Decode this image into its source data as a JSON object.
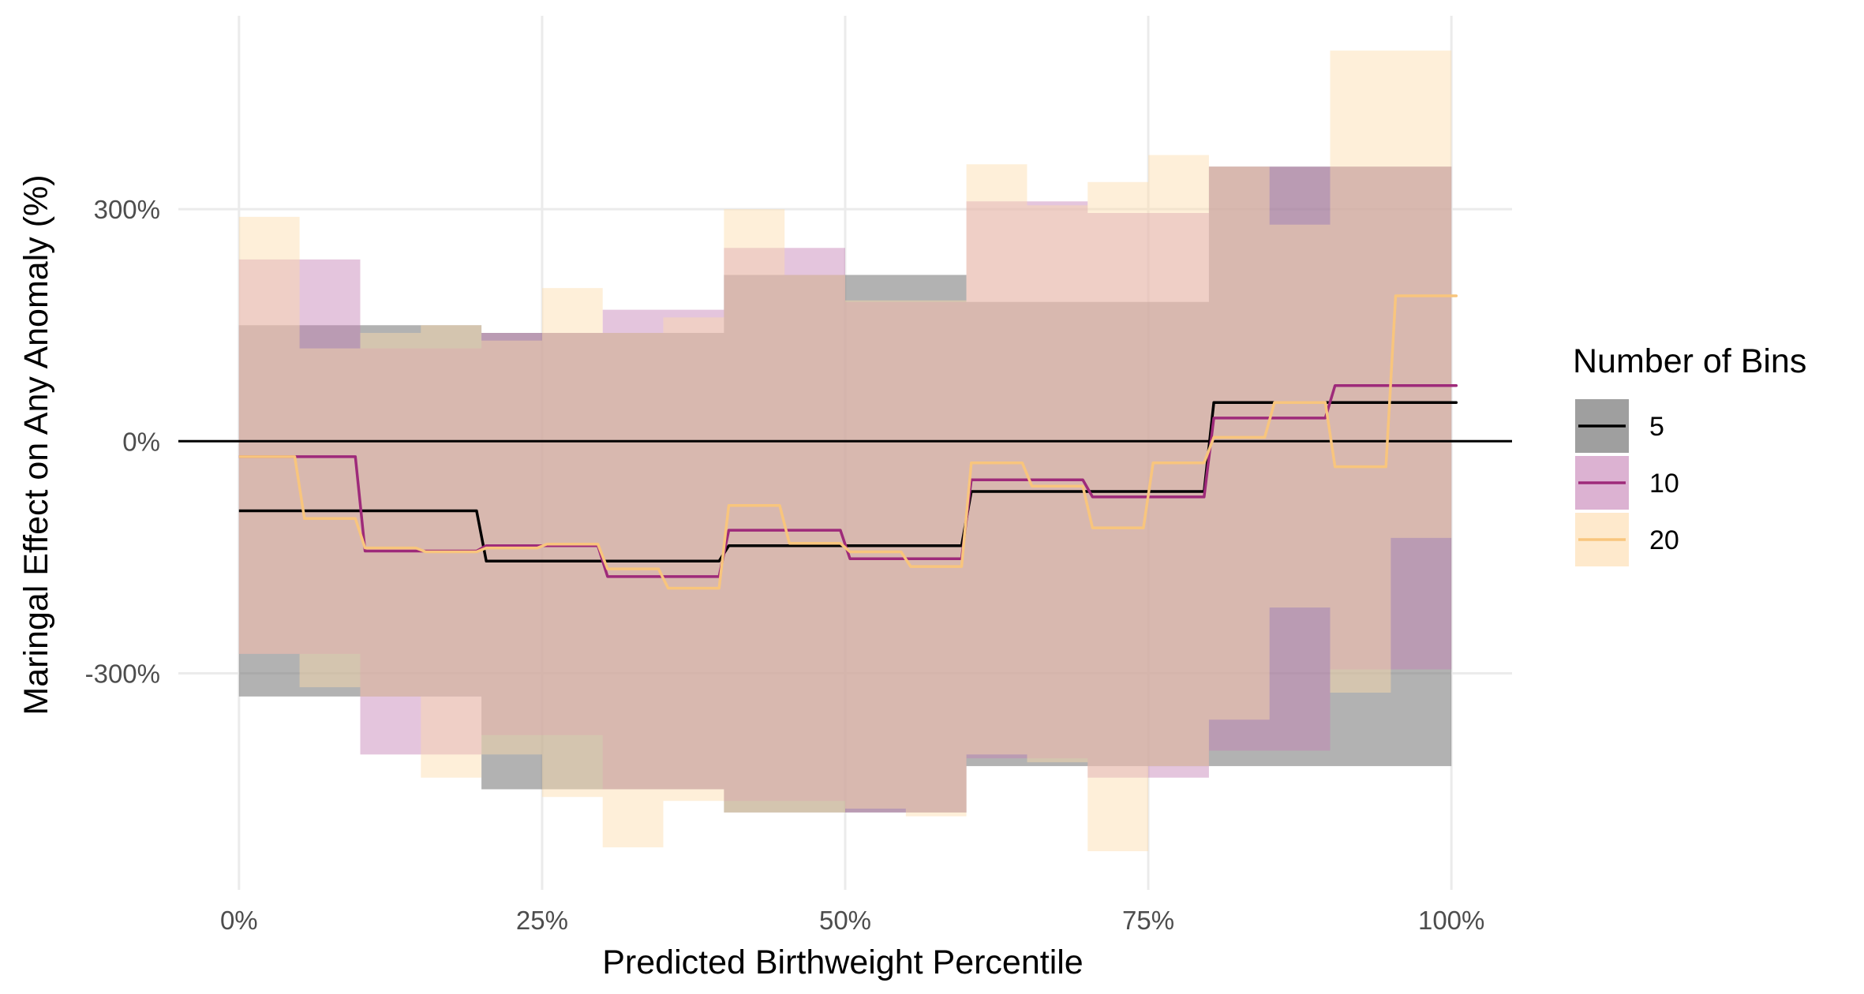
{
  "chart_data": {
    "type": "line",
    "title": "",
    "xlabel": "Predicted Birthweight Percentile",
    "ylabel": "Maringal Effect on Any Anomaly (%)",
    "xlim": [
      -5,
      105
    ],
    "ylim": [
      -580,
      550
    ],
    "x_ticks": [
      0,
      25,
      50,
      75,
      100
    ],
    "x_tick_labels": [
      "0%",
      "25%",
      "50%",
      "75%",
      "100%"
    ],
    "y_ticks": [
      300,
      0,
      -300
    ],
    "y_tick_labels": [
      "300%",
      "0%",
      "-300%"
    ],
    "grid": true,
    "reference_line_y": 0,
    "legend": {
      "title": "Number of Bins",
      "placement": "right",
      "entries": [
        "5",
        "10",
        "20"
      ]
    },
    "series": [
      {
        "name": "5",
        "line_color": "#000000",
        "ribbon_color": "#7f7f7f",
        "ribbon_opacity": 0.6,
        "x": [
          0,
          20,
          40,
          60,
          80,
          100
        ],
        "y": [
          -90,
          -155,
          -135,
          -65,
          50,
          50
        ],
        "lower": [
          -330,
          -450,
          -480,
          -420,
          -420,
          -250
        ],
        "upper": [
          150,
          140,
          215,
          180,
          355,
          355
        ]
      },
      {
        "name": "10",
        "line_color": "#9e2a7a",
        "ribbon_color": "#c47fb4",
        "ribbon_opacity": 0.45,
        "x": [
          0,
          10,
          20,
          30,
          40,
          50,
          60,
          70,
          80,
          90,
          100
        ],
        "y": [
          -20,
          -142,
          -135,
          -175,
          -115,
          -152,
          -50,
          -72,
          30,
          72,
          72
        ],
        "lower": [
          -275,
          -405,
          -380,
          -450,
          -465,
          -480,
          -410,
          -435,
          -400,
          -295,
          -125
        ],
        "upper": [
          235,
          120,
          140,
          170,
          250,
          180,
          310,
          295,
          355,
          355,
          355
        ]
      },
      {
        "name": "20",
        "line_color": "#f8c57d",
        "ribbon_color": "#fddbaa",
        "ribbon_opacity": 0.45,
        "x": [
          0,
          5,
          10,
          15,
          20,
          25,
          30,
          35,
          40,
          45,
          50,
          55,
          60,
          65,
          70,
          75,
          80,
          85,
          90,
          95,
          100
        ],
        "y": [
          -20,
          -100,
          -138,
          -143,
          -138,
          -133,
          -165,
          -190,
          -83,
          -132,
          -143,
          -162,
          -28,
          -58,
          -112,
          -28,
          5,
          50,
          -33,
          188,
          188
        ],
        "lower": [
          -275,
          -318,
          -330,
          -435,
          -405,
          -460,
          -525,
          -465,
          -480,
          -480,
          -475,
          -485,
          -405,
          -415,
          -530,
          -420,
          -360,
          -215,
          -325,
          -125,
          -125
        ],
        "upper": [
          290,
          120,
          140,
          150,
          130,
          198,
          140,
          160,
          300,
          215,
          182,
          182,
          358,
          305,
          335,
          370,
          355,
          280,
          505,
          505,
          505
        ]
      }
    ]
  }
}
